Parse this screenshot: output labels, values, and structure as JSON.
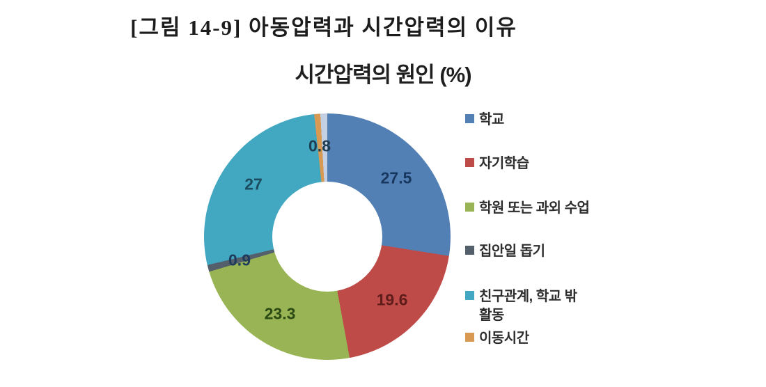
{
  "figure": {
    "caption": "[그림 14-9] 아동압력과 시간압력의 이유"
  },
  "chart_data": {
    "type": "pie",
    "subtype": "donut",
    "title": "시간압력의 원인 (%)",
    "unit": "%",
    "legend_position": "right",
    "start_angle_deg": 0,
    "direction": "clockwise",
    "series": [
      {
        "label": "학교",
        "legend_label": "학교",
        "value": 27.5,
        "display": "27.5",
        "color": "#5380B4",
        "label_color": "#17375E"
      },
      {
        "label": "자기학습",
        "legend_label": "자기학습",
        "value": 19.6,
        "display": "19.6",
        "color": "#BE4B48",
        "label_color": "#5E1C1A"
      },
      {
        "label": "학원 또는 과외 수업",
        "legend_label": "학원 또는 과외 수업",
        "value": 23.3,
        "display": "23.3",
        "color": "#98B454",
        "label_color": "#2C4A13"
      },
      {
        "label": "집안일 돕기",
        "legend_label": "집안일 돕기",
        "value": 0.9,
        "display": "0.9",
        "color": "#545F6C",
        "label_color": "#1F3B5C"
      },
      {
        "label": "친구관계, 학교 밖 활동",
        "legend_label": "친구관계, 학교 밖\n활동",
        "value": 27,
        "display": "27",
        "color": "#42A7C1",
        "label_color": "#1C4C60"
      },
      {
        "label": "이동시간",
        "legend_label": "이동시간",
        "value": 0.8,
        "display": "0.8",
        "color": "#D89952",
        "label_color": "#1E3C52"
      }
    ],
    "unlabeled_remainder": {
      "value": 0.9,
      "color": "#C3CFE2"
    }
  }
}
